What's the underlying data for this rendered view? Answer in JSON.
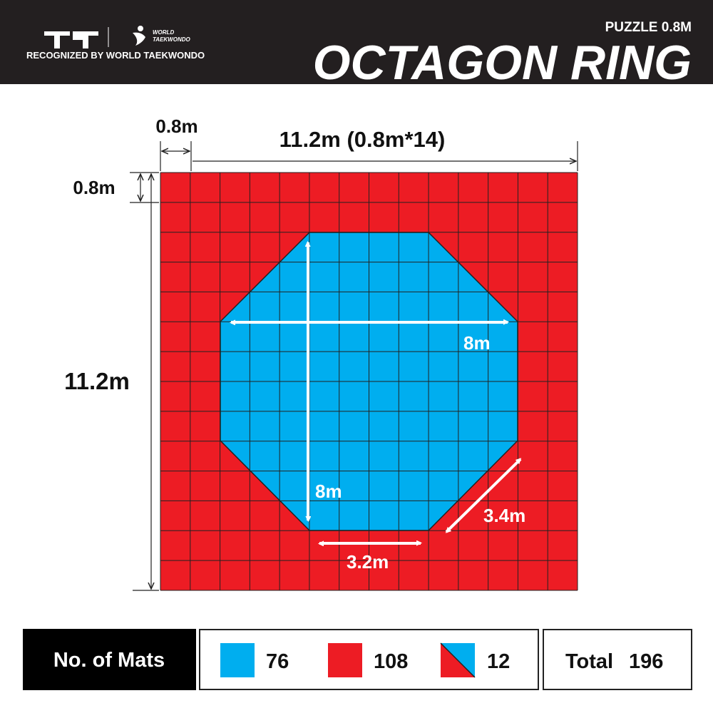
{
  "header": {
    "logo_lines": [
      "WORLD",
      "TAEKWONDO"
    ],
    "recognized": "RECOGNIZED BY WORLD TAEKWONDO",
    "subtitle": "PUZZLE 0.8M",
    "title": "OCTAGON RING"
  },
  "dimensions": {
    "tile_width": "0.8m",
    "total_width": "11.2m (0.8m*14)",
    "tile_height": "0.8m",
    "total_height": "11.2m",
    "octagon_width": "8m",
    "octagon_height": "8m",
    "diagonal_edge": "3.4m",
    "straight_edge": "3.2m"
  },
  "mats": {
    "label": "No. of Mats",
    "items": [
      {
        "count": 76
      },
      {
        "count": 108
      },
      {
        "count": 12
      }
    ],
    "total_label": "Total",
    "total": 196
  }
}
